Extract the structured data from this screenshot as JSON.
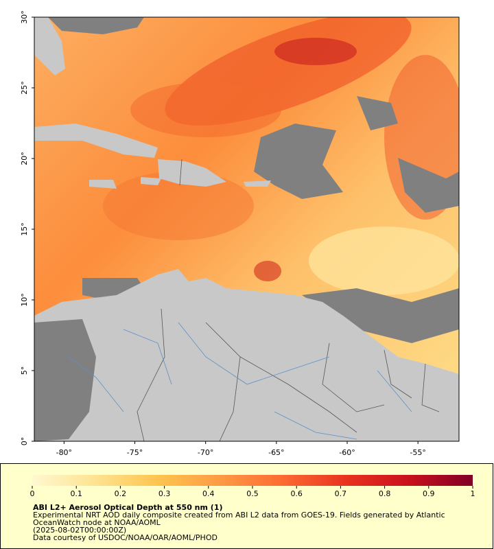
{
  "map": {
    "xlim": [
      -82.1,
      -52.1
    ],
    "ylim": [
      0,
      30
    ],
    "xticks": [
      {
        "value": -80,
        "label": "-80°"
      },
      {
        "value": -75,
        "label": "-75°"
      },
      {
        "value": -70,
        "label": "-70°"
      },
      {
        "value": -65,
        "label": "-65°"
      },
      {
        "value": -60,
        "label": "-60°"
      },
      {
        "value": -55,
        "label": "-55°"
      }
    ],
    "yticks": [
      {
        "value": 0,
        "label": "0°"
      },
      {
        "value": 5,
        "label": "5°"
      },
      {
        "value": 10,
        "label": "10°"
      },
      {
        "value": 15,
        "label": "15°"
      },
      {
        "value": 20,
        "label": "20°"
      },
      {
        "value": 25,
        "label": "25°"
      },
      {
        "value": 30,
        "label": "30°"
      }
    ]
  },
  "colorbar": {
    "title": "ABI L2+ Aerosol Optical Depth at 550 nm (1)",
    "range": [
      0,
      1
    ],
    "ticks": [
      0,
      0.1,
      0.2,
      0.3,
      0.4,
      0.5,
      0.6,
      0.7,
      0.8,
      0.9,
      1
    ],
    "colormap": [
      "#fff8d0",
      "#fee391",
      "#fec44f",
      "#fd9a44",
      "#fc6a32",
      "#e8321e",
      "#c8101c",
      "#800026"
    ]
  },
  "notes": [
    "Experimental NRT AOD daily composite created from ABI L2 data from GOES-19. Fields generated by Atlantic",
    "OceanWatch node at NOAA/AOML",
    "(2025-08-02T00:00:00Z)",
    "Data courtesy of USDOC/NOAA/OAR/AOML/PHOD"
  ]
}
